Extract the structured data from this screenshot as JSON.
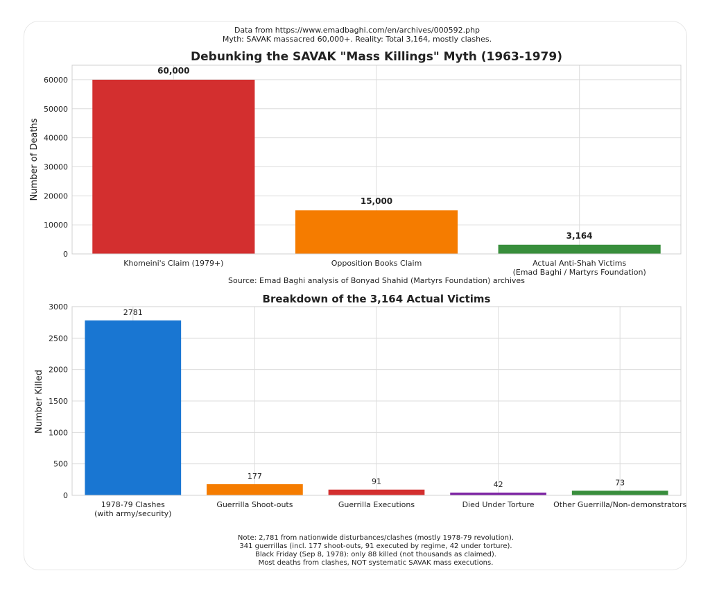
{
  "header": {
    "line1": "Data from https://www.emadbaghi.com/en/archives/000592.php",
    "line2": "Myth: SAVAK massacred 60,000+. Reality: Total 3,164, mostly clashes."
  },
  "chart_data": [
    {
      "type": "bar",
      "title": "Debunking the SAVAK \"Mass Killings\" Myth (1963-1979)",
      "ylabel": "Number of Deaths",
      "xlabel": "Source: Emad Baghi analysis of Bonyad Shahid (Martyrs Foundation) archives",
      "ylim": [
        0,
        65000
      ],
      "yticks": [
        0,
        10000,
        20000,
        30000,
        40000,
        50000,
        60000
      ],
      "categories": [
        [
          "Khomeini's Claim (1979+)"
        ],
        [
          "Opposition Books Claim"
        ],
        [
          "Actual Anti-Shah Victims",
          "(Emad Baghi / Martyrs Foundation)"
        ]
      ],
      "values": [
        60000,
        15000,
        3164
      ],
      "value_labels": [
        "60,000",
        "15,000",
        "3,164"
      ],
      "colors": [
        "#d32f2f",
        "#f57c00",
        "#388e3c"
      ],
      "grid": true
    },
    {
      "type": "bar",
      "title": "Breakdown of the 3,164 Actual Victims",
      "ylabel": "Number Killed",
      "ylim": [
        0,
        3000
      ],
      "yticks": [
        0,
        500,
        1000,
        1500,
        2000,
        2500,
        3000
      ],
      "categories": [
        [
          "1978-79 Clashes",
          "(with army/security)"
        ],
        [
          "Guerrilla Shoot-outs"
        ],
        [
          "Guerrilla Executions"
        ],
        [
          "Died Under Torture"
        ],
        [
          "Other Guerrilla/Non-demonstrators"
        ]
      ],
      "values": [
        2781,
        177,
        91,
        42,
        73
      ],
      "value_labels": [
        "2781",
        "177",
        "91",
        "42",
        "73"
      ],
      "colors": [
        "#1976d2",
        "#f57c00",
        "#d32f2f",
        "#7b1fa2",
        "#388e3c"
      ],
      "grid": true
    }
  ],
  "footer": {
    "lines": [
      "Note: 2,781 from nationwide disturbances/clashes (mostly 1978-79 revolution).",
      "341 guerrillas (incl. 177 shoot-outs, 91 executed by regime, 42 under torture).",
      "Black Friday (Sep 8, 1978): only 88 killed (not thousands as claimed).",
      "Most deaths from clashes, NOT systematic SAVAK mass executions."
    ]
  }
}
